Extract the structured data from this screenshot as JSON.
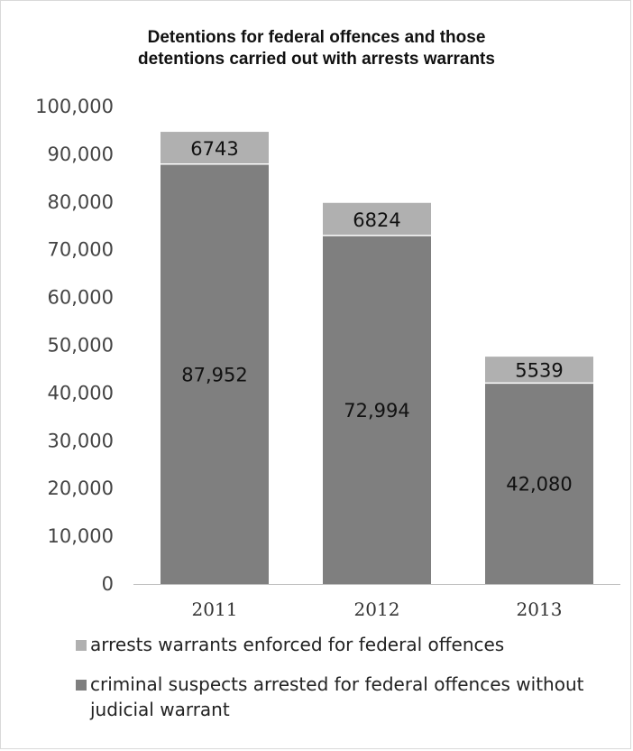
{
  "chart_data": {
    "type": "bar",
    "stacked": true,
    "title": "Detentions for federal offences and those detentions carried out with arrests warrants",
    "title_lines": [
      "Detentions for federal offences and those",
      "detentions carried out with arrests warrants"
    ],
    "categories": [
      "2011",
      "2012",
      "2013"
    ],
    "series": [
      {
        "name": "criminal suspects arrested for federal offences without judicial warrant",
        "values": [
          87952,
          72994,
          42080
        ],
        "labels": [
          "87,952",
          "72,994",
          "42,080"
        ],
        "color": "#7f7f7f"
      },
      {
        "name": "arrests warrants enforced for federal offences",
        "values": [
          6743,
          6824,
          5539
        ],
        "labels": [
          "6743",
          "6824",
          "5539"
        ],
        "color": "#b0b0b0"
      }
    ],
    "ylim": [
      0,
      100000
    ],
    "yticks": [
      0,
      10000,
      20000,
      30000,
      40000,
      50000,
      60000,
      70000,
      80000,
      90000,
      100000
    ],
    "ytick_labels": [
      "0",
      "10,000",
      "20,000",
      "30,000",
      "40,000",
      "50,000",
      "60,000",
      "70,000",
      "80,000",
      "90,000",
      "100,000"
    ],
    "grid": false,
    "legend_position": "bottom",
    "legend_order": [
      1,
      0
    ]
  }
}
